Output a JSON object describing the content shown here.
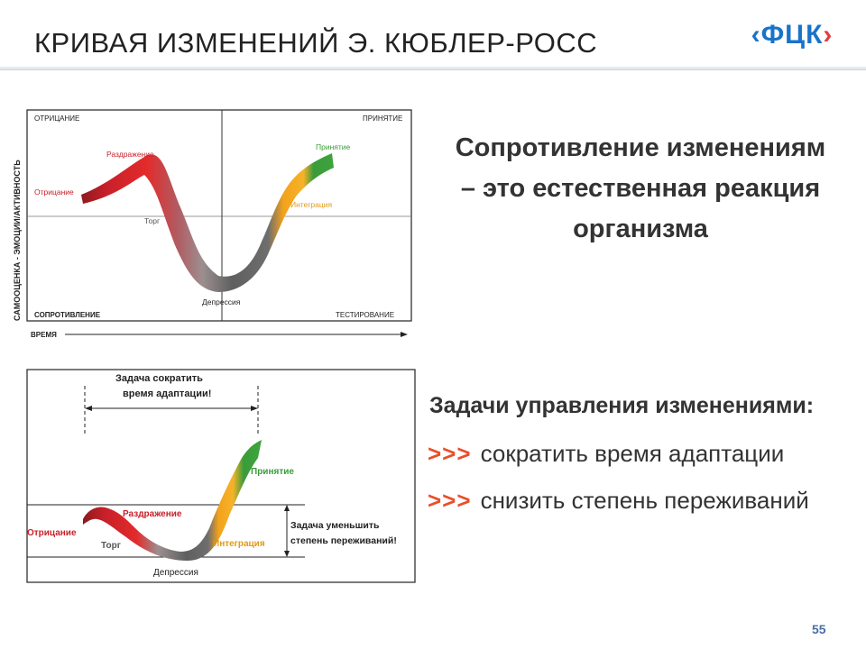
{
  "slide": {
    "title": "КРИВАЯ ИЗМЕНЕНИЙ Э. КЮБЛЕР-РОСС",
    "logo_text": "ФЦК",
    "logo_bracket_left": "‹",
    "logo_bracket_right": "›",
    "page_number": "55"
  },
  "diagram1": {
    "y_axis_label": "САМООЦЕНКА - ЭМОЦИИ/АКТИВНОСТЬ",
    "x_axis_label": "ВРЕМЯ",
    "quadrants": {
      "top_left": "ОТРИЦАНИЕ",
      "top_right": "ПРИНЯТИЕ",
      "bottom_left": "СОПРОТИВЛЕНИЕ",
      "bottom_right": "ТЕСТИРОВАНИЕ"
    },
    "stages": {
      "denial": "Отрицание",
      "anger": "Раздражение",
      "bargaining": "Торг",
      "depression": "Депрессия",
      "integration": "Интеграция",
      "acceptance": "Принятие"
    }
  },
  "diagram2": {
    "task_time": "Задача сократить время адаптации!",
    "task_time_line1": "Задача сократить",
    "task_time_line2": "время адаптации!",
    "task_depth_line1": "Задача уменьшить",
    "task_depth_line2": "степень переживаний!",
    "stages": {
      "denial": "Отрицание",
      "anger": "Раздражение",
      "bargaining": "Торг",
      "depression": "Депрессия",
      "integration": "Интеграция",
      "acceptance": "Принятие"
    }
  },
  "statement": {
    "line1": "Сопротивление изменениям",
    "line2": "– это естественная реакция",
    "line3": "организма"
  },
  "tasks": {
    "heading": "Задачи управления изменениями:",
    "marker": ">>>",
    "items": [
      "сократить время адаптации",
      "снизить степень переживаний"
    ]
  },
  "colors": {
    "red": "#c8202a",
    "grey": "#5f5f5f",
    "orange": "#f3a21b",
    "green": "#3a9c3a",
    "accent": "#e8502a",
    "logo_blue": "#1a73c9"
  }
}
